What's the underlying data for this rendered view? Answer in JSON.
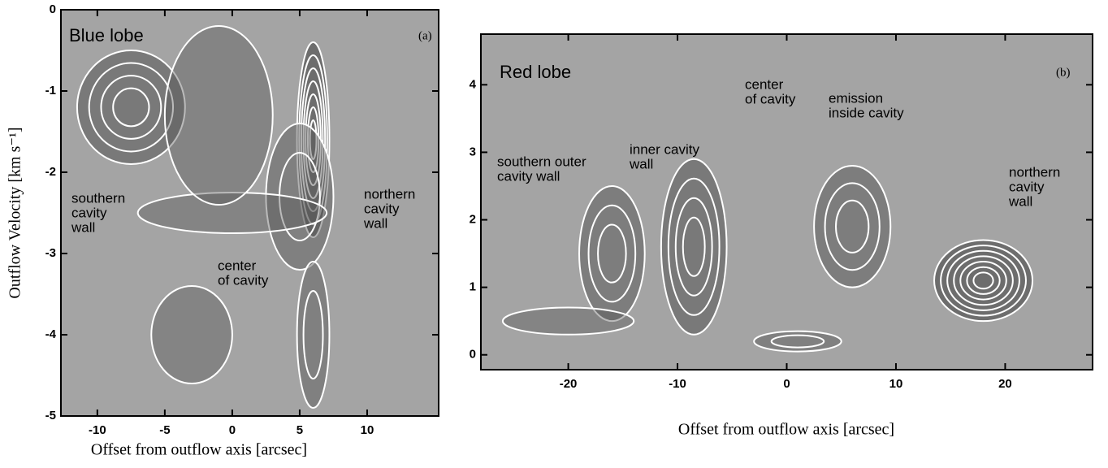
{
  "chart_data": [
    {
      "type": "contour",
      "panel_label": "(a)",
      "title": "Blue lobe",
      "xlabel": "Offset from outflow axis [arcsec]",
      "ylabel": "Outflow Velocity  [km s⁻¹]",
      "xlim": [
        -12.7,
        15.3
      ],
      "ylim": [
        -5,
        0
      ],
      "xticks": [
        -10,
        -5,
        0,
        5,
        10
      ],
      "yticks": [
        0,
        -1,
        -2,
        -3,
        -4,
        -5
      ],
      "annotations": [
        [
          "southern",
          "cavity",
          "wall"
        ],
        [
          "northern",
          "cavity",
          "wall"
        ],
        [
          "center",
          "of cavity"
        ]
      ]
    },
    {
      "type": "contour",
      "panel_label": "(b)",
      "title": "Red lobe",
      "xlabel": "Offset from outflow axis [arcsec]",
      "xlim": [
        -28,
        28
      ],
      "ylim": [
        -0.22,
        4.75
      ],
      "xticks": [
        -20,
        -10,
        0,
        10,
        20
      ],
      "yticks": [
        0,
        1,
        2,
        3,
        4
      ],
      "annotations": [
        [
          "southern outer",
          "cavity wall"
        ],
        [
          "inner cavity",
          "wall"
        ],
        [
          "center",
          "of cavity"
        ],
        [
          "emission",
          "inside cavity"
        ],
        [
          "northern",
          "cavity",
          "wall"
        ]
      ]
    }
  ]
}
